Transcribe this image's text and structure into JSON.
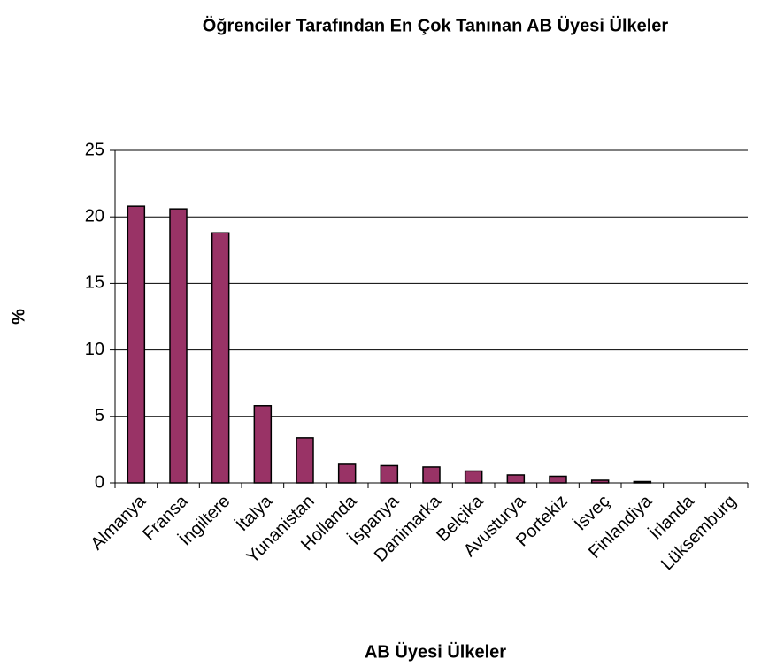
{
  "chart_data": {
    "type": "bar",
    "title": "Öğrenciler Tarafından En Çok Tanınan  AB Üyesi Ülkeler",
    "xlabel": "AB Üyesi Ülkeler",
    "ylabel": "%",
    "categories": [
      "Almanya",
      "Fransa",
      "İngiltere",
      "İtalya",
      "Yunanistan",
      "Hollanda",
      "İspanya",
      "Danimarka",
      "Belçika",
      "Avusturya",
      "Portekiz",
      "İsveç",
      "Finlandiya",
      "İrlanda",
      "Lüksemburg"
    ],
    "values": [
      20.8,
      20.6,
      18.8,
      5.8,
      3.4,
      1.4,
      1.3,
      1.2,
      0.9,
      0.6,
      0.5,
      0.2,
      0.1,
      0,
      0
    ],
    "color": "#993366",
    "ylim": [
      0,
      25
    ],
    "yticks": [
      0,
      5,
      10,
      15,
      20,
      25
    ],
    "grid": true
  }
}
